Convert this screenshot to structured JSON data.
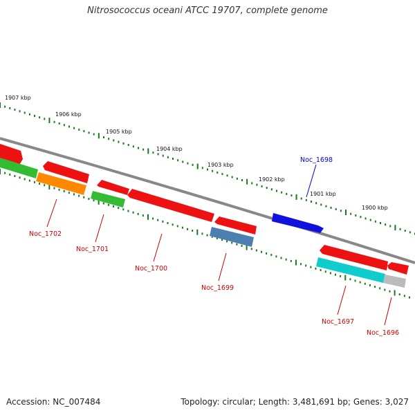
{
  "title": "Nitrosococcus oceani ATCC 19707, complete genome",
  "footer": {
    "accession": "Accession: NC_007484",
    "summary": "Topology: circular; Length: 3,481,691 bp; Genes: 3,027"
  },
  "colors": {
    "backbone": "#888888",
    "tick_marks": "#1a7a1a",
    "forward_label": "#0000cc",
    "reverse_label": "#cc0000",
    "red_gene": "#ee1111",
    "blue_gene": "#1111dd",
    "green_gene": "#33bb33",
    "orange_gene": "#ff8800",
    "steelblue_gene": "#4a7fb0",
    "cyan_gene": "#11cccc",
    "gray_gene": "#bbbbbb"
  },
  "scale_ticks": [
    {
      "label": "1907 kbp"
    },
    {
      "label": "1906 kbp"
    },
    {
      "label": "1905 kbp"
    },
    {
      "label": "1904 kbp"
    },
    {
      "label": "1903 kbp"
    },
    {
      "label": "1902 kbp"
    },
    {
      "label": "1901 kbp"
    },
    {
      "label": "1900 kbp"
    }
  ],
  "gene_labels": [
    {
      "label": "Noc_1698",
      "strand": "forward"
    },
    {
      "label": "Noc_1702",
      "strand": "reverse"
    },
    {
      "label": "Noc_1701",
      "strand": "reverse"
    },
    {
      "label": "Noc_1700",
      "strand": "reverse"
    },
    {
      "label": "Noc_1699",
      "strand": "reverse"
    },
    {
      "label": "Noc_1697",
      "strand": "reverse"
    },
    {
      "label": "Noc_1696",
      "strand": "reverse"
    }
  ]
}
